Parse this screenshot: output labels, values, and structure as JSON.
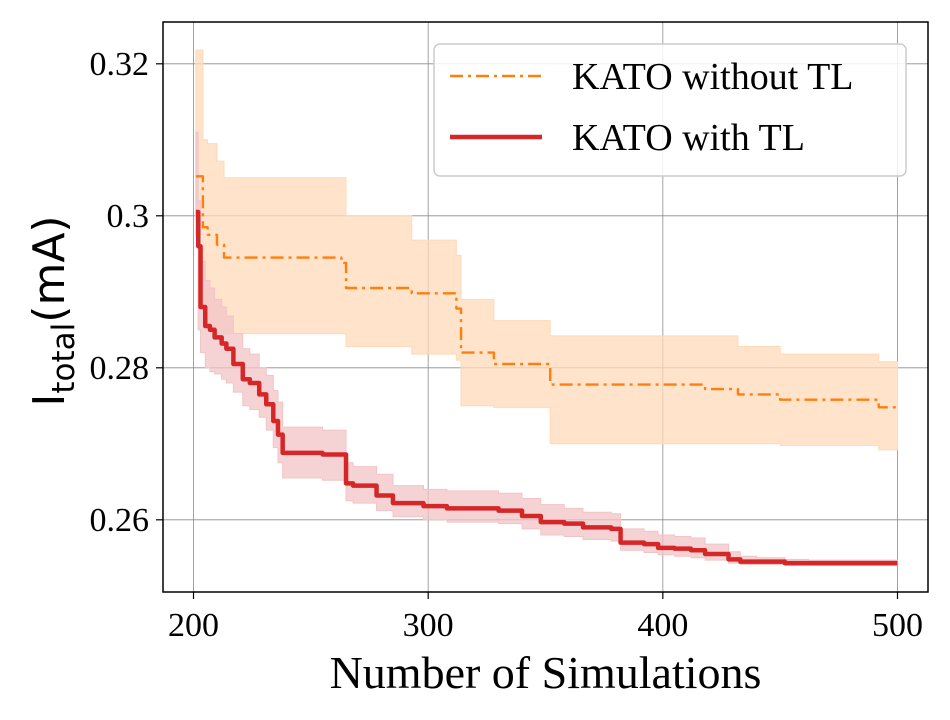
{
  "chart_data": {
    "type": "line",
    "title": "",
    "xlabel": "Number of Simulations",
    "ylabel": {
      "main": "I",
      "subscript": "total",
      "unit": "(mA)"
    },
    "xlim": [
      187,
      513
    ],
    "ylim": [
      0.2505,
      0.3255
    ],
    "xticks": [
      200,
      300,
      400,
      500
    ],
    "xtick_labels": [
      "200",
      "300",
      "400",
      "500"
    ],
    "yticks": [
      0.26,
      0.28,
      0.3,
      0.32
    ],
    "ytick_labels": [
      "0.26",
      "0.28",
      "0.3",
      "0.32"
    ],
    "grid": true,
    "legend_position": "top-right",
    "series": [
      {
        "name": "KATO without TL",
        "color": "#ff7f0e",
        "linestyle": "dashdot",
        "band_color": "#ffd9b8",
        "step": true,
        "x": [
          201,
          204,
          206,
          207,
          210,
          213,
          263,
          265,
          293,
          312,
          314,
          328,
          352,
          418,
          432,
          450,
          492,
          500
        ],
        "y": [
          0.3052,
          0.2985,
          0.2975,
          0.2975,
          0.2962,
          0.2945,
          0.2938,
          0.2905,
          0.2898,
          0.2878,
          0.282,
          0.2805,
          0.2778,
          0.2772,
          0.2765,
          0.2758,
          0.2748,
          0.2748
        ],
        "lower": [
          0.2975,
          0.288,
          0.286,
          0.285,
          0.2845,
          0.2845,
          0.2845,
          0.2828,
          0.2818,
          0.281,
          0.275,
          0.2748,
          0.27,
          0.27,
          0.27,
          0.2698,
          0.2692,
          0.2692
        ],
        "upper": [
          0.3218,
          0.31,
          0.3095,
          0.3095,
          0.3072,
          0.305,
          0.305,
          0.3,
          0.2968,
          0.2948,
          0.289,
          0.2862,
          0.2842,
          0.2842,
          0.2828,
          0.2818,
          0.2808,
          0.2808
        ]
      },
      {
        "name": "KATO with TL",
        "color": "#d62728",
        "linestyle": "solid",
        "band_color": "#f2c4c6",
        "step": true,
        "x": [
          201,
          202,
          203,
          205,
          207,
          209,
          212,
          214,
          217,
          221,
          224,
          228,
          231,
          234,
          236,
          238,
          255,
          265,
          268,
          278,
          285,
          298,
          308,
          330,
          340,
          348,
          358,
          366,
          378,
          382,
          392,
          398,
          405,
          412,
          418,
          428,
          433,
          440,
          452,
          462,
          500
        ],
        "y": [
          0.3005,
          0.296,
          0.288,
          0.2855,
          0.285,
          0.284,
          0.2832,
          0.2825,
          0.2805,
          0.2785,
          0.278,
          0.2765,
          0.2752,
          0.273,
          0.2712,
          0.2688,
          0.2686,
          0.2648,
          0.2645,
          0.2632,
          0.2622,
          0.2618,
          0.2615,
          0.2612,
          0.2605,
          0.2597,
          0.2595,
          0.259,
          0.2588,
          0.257,
          0.2568,
          0.2563,
          0.2562,
          0.256,
          0.2555,
          0.2548,
          0.2545,
          0.2545,
          0.2543,
          0.2543,
          0.2543
        ],
        "lower": [
          0.3,
          0.285,
          0.282,
          0.28,
          0.2795,
          0.2792,
          0.2785,
          0.278,
          0.2768,
          0.275,
          0.2745,
          0.2735,
          0.2718,
          0.2695,
          0.2675,
          0.2655,
          0.2652,
          0.2625,
          0.2622,
          0.2612,
          0.2604,
          0.26,
          0.2597,
          0.2595,
          0.2588,
          0.258,
          0.2578,
          0.2574,
          0.2572,
          0.256,
          0.2557,
          0.2554,
          0.2552,
          0.255,
          0.2547,
          0.2543,
          0.2541,
          0.2541,
          0.254,
          0.254,
          0.254
        ],
        "upper": [
          0.311,
          0.302,
          0.294,
          0.2915,
          0.2905,
          0.289,
          0.288,
          0.2868,
          0.2845,
          0.2825,
          0.2818,
          0.28,
          0.279,
          0.277,
          0.2755,
          0.2722,
          0.2718,
          0.2675,
          0.267,
          0.266,
          0.2645,
          0.264,
          0.2638,
          0.2635,
          0.2628,
          0.262,
          0.2615,
          0.261,
          0.2608,
          0.2588,
          0.2585,
          0.258,
          0.2578,
          0.2576,
          0.2568,
          0.2558,
          0.2552,
          0.255,
          0.2548,
          0.2547,
          0.2547
        ]
      }
    ]
  }
}
